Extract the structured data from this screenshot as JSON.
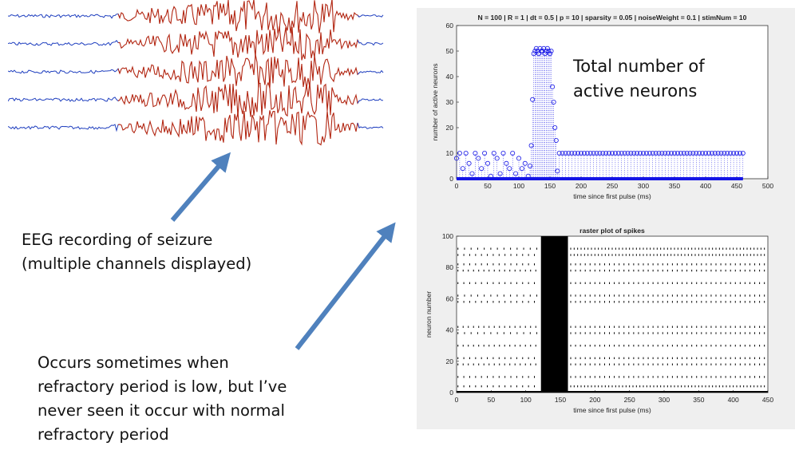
{
  "captions": {
    "eeg_line1": "EEG recording of seizure",
    "eeg_line2": "(multiple channels displayed)",
    "occurs_line1": "Occurs sometimes when",
    "occurs_line2": "refractory period is low, but I’ve",
    "occurs_line3": "never seen it occur with normal",
    "occurs_line4": "refractory period"
  },
  "eeg": {
    "channels": 5,
    "colors": {
      "background_trace": "#1f3fbf",
      "seizure_trace": "#b22612"
    }
  },
  "annotation": {
    "line1": "Total number of",
    "line2": "active neurons"
  },
  "colors": {
    "arrow": "#4f81bd",
    "plot_blue": "#1414e6",
    "panel_bg": "#efefef"
  },
  "chart_data": [
    {
      "type": "scatter",
      "title": "N = 100 | R = 1 | dt = 0.5 | p = 10 | sparsity = 0.05 | noiseWeight = 0.1 | stimNum = 10",
      "xlabel": "time since first pulse (ms)",
      "ylabel": "number of active neurons",
      "xlim": [
        0,
        500
      ],
      "ylim": [
        0,
        60
      ],
      "xticks": [
        "0",
        "50",
        "100",
        "150",
        "200",
        "250",
        "300",
        "350",
        "400",
        "450",
        "500"
      ],
      "yticks": [
        "0",
        "10",
        "20",
        "30",
        "40",
        "50",
        "60"
      ],
      "grid": false,
      "marker": "open-circle stem",
      "series": [
        {
          "x": [
            0,
            5,
            10,
            15,
            20,
            25,
            30,
            35,
            40,
            45,
            50,
            55,
            60,
            65,
            70,
            75,
            80,
            85,
            90,
            95,
            100,
            105,
            110,
            115,
            118,
            120,
            122,
            124,
            126,
            128,
            130,
            132,
            134,
            136,
            138,
            140,
            142,
            144,
            146,
            148,
            150,
            152,
            154,
            156,
            158,
            160,
            162,
            165,
            170,
            175,
            180,
            185,
            190,
            195,
            200,
            205,
            210,
            215,
            220,
            225,
            230,
            235,
            240,
            245,
            250,
            255,
            260,
            265,
            270,
            275,
            280,
            285,
            290,
            295,
            300,
            305,
            310,
            315,
            320,
            325,
            330,
            335,
            340,
            345,
            350,
            355,
            360,
            365,
            370,
            375,
            380,
            385,
            390,
            395,
            400,
            405,
            410,
            415,
            420,
            425,
            430,
            435,
            440,
            445,
            450,
            455,
            460
          ],
          "y": [
            8,
            10,
            4,
            10,
            6,
            2,
            10,
            8,
            4,
            10,
            6,
            1,
            10,
            8,
            2,
            10,
            6,
            4,
            10,
            2,
            8,
            4,
            6,
            1,
            5,
            13,
            31,
            49,
            50,
            51,
            50,
            49,
            51,
            50,
            50,
            51,
            49,
            50,
            51,
            50,
            49,
            50,
            36,
            30,
            20,
            15,
            3,
            10,
            10,
            10,
            10,
            10,
            10,
            10,
            10,
            10,
            10,
            10,
            10,
            10,
            10,
            10,
            10,
            10,
            10,
            10,
            10,
            10,
            10,
            10,
            10,
            10,
            10,
            10,
            10,
            10,
            10,
            10,
            10,
            10,
            10,
            10,
            10,
            10,
            10,
            10,
            10,
            10,
            10,
            10,
            10,
            10,
            10,
            10,
            10,
            10,
            10,
            10,
            10,
            10,
            10,
            10,
            10,
            10,
            10,
            10,
            10
          ]
        }
      ]
    },
    {
      "type": "scatter",
      "title": "raster plot of spikes",
      "xlabel": "time since first pulse (ms)",
      "ylabel": "neuron number",
      "xlim": [
        0,
        450
      ],
      "ylim": [
        0,
        100
      ],
      "xticks": [
        "0",
        "50",
        "100",
        "150",
        "200",
        "250",
        "300",
        "350",
        "400",
        "450"
      ],
      "yticks": [
        "0",
        "20",
        "40",
        "60",
        "80",
        "100"
      ],
      "grid": false,
      "marker": "spike tick",
      "series": [
        {
          "x": [
            5,
            10,
            15,
            20,
            25,
            30,
            35,
            40,
            45,
            50,
            55,
            60,
            65,
            70,
            75,
            80,
            85,
            90,
            95,
            100,
            105,
            110,
            115,
            120,
            125,
            130,
            135,
            140,
            145,
            150,
            155,
            160,
            165,
            170,
            175,
            180,
            185,
            190,
            195,
            200,
            205,
            210,
            215,
            220,
            225,
            230,
            235,
            240,
            245,
            250,
            255,
            260,
            265,
            270,
            275,
            280,
            285,
            290,
            295,
            300,
            305,
            310,
            315,
            320,
            325,
            330,
            335,
            340,
            345,
            350,
            355,
            360,
            365,
            370,
            375,
            380,
            385,
            390,
            395,
            400,
            405,
            410,
            415,
            420,
            425,
            430,
            435,
            440,
            445,
            450
          ],
          "y": [
            4,
            8,
            12,
            16,
            20,
            24,
            28,
            32,
            36,
            40,
            44,
            48,
            52,
            56,
            60,
            64,
            68,
            72,
            76,
            80,
            84,
            88,
            92,
            96,
            100,
            4,
            8,
            12,
            16,
            20,
            24,
            28,
            32,
            36,
            40,
            44,
            48,
            52,
            56,
            60,
            64,
            68,
            72,
            76,
            80,
            84,
            88,
            92,
            96,
            100,
            4,
            8,
            12,
            16,
            20,
            24,
            28,
            32,
            36,
            40,
            44,
            48,
            52,
            56,
            60,
            64,
            68,
            72,
            76,
            80,
            84,
            88,
            92,
            96,
            100,
            4,
            8,
            12,
            16,
            20,
            24,
            28,
            32,
            36,
            40,
            44,
            48,
            52,
            56,
            60
          ]
        }
      ]
    }
  ]
}
